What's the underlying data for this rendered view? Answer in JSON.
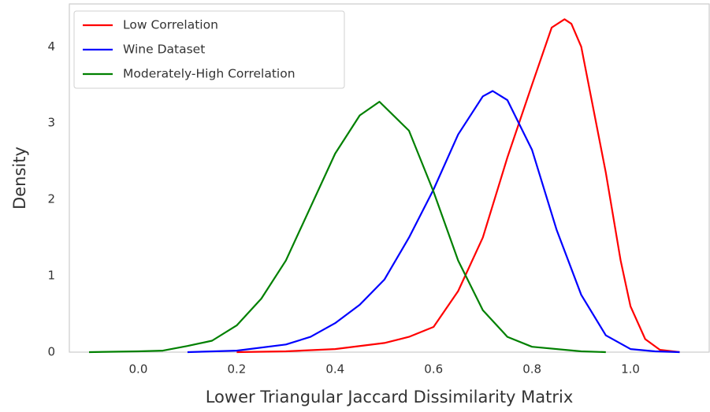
{
  "chart_data": {
    "type": "line",
    "xlabel": "Lower Triangular Jaccard Dissimilarity Matrix",
    "ylabel": "Density",
    "xlim": [
      -0.14,
      1.16
    ],
    "ylim": [
      0,
      4.56
    ],
    "xticks": [
      {
        "value": 0,
        "label": "0.0"
      },
      0.2,
      0.4,
      0.6,
      0.8,
      {
        "value": 1,
        "label": "1.0"
      }
    ],
    "yticks": [
      0,
      1,
      2,
      3,
      4
    ],
    "grid": false,
    "legend": "upper left",
    "series": [
      {
        "name": "Low Correlation",
        "color": "#ff0000",
        "x": [
          0.2,
          0.3,
          0.4,
          0.5,
          0.55,
          0.6,
          0.65,
          0.7,
          0.75,
          0.8,
          0.84,
          0.866,
          0.88,
          0.9,
          0.95,
          0.98,
          1.0,
          1.03,
          1.06,
          1.1
        ],
        "values": [
          0.0,
          0.01,
          0.04,
          0.12,
          0.2,
          0.33,
          0.8,
          1.5,
          2.55,
          3.5,
          4.25,
          4.36,
          4.3,
          4.0,
          2.35,
          1.2,
          0.6,
          0.17,
          0.03,
          0.0
        ]
      },
      {
        "name": "Wine Dataset",
        "color": "#0000ff",
        "x": [
          0.1,
          0.2,
          0.3,
          0.35,
          0.4,
          0.45,
          0.5,
          0.55,
          0.6,
          0.65,
          0.7,
          0.72,
          0.75,
          0.8,
          0.85,
          0.9,
          0.95,
          1.0,
          1.05,
          1.1
        ],
        "values": [
          0.0,
          0.02,
          0.1,
          0.2,
          0.38,
          0.62,
          0.95,
          1.5,
          2.13,
          2.85,
          3.35,
          3.42,
          3.3,
          2.65,
          1.6,
          0.75,
          0.22,
          0.04,
          0.01,
          0.0
        ]
      },
      {
        "name": "Moderately-High Correlation",
        "color": "#008000",
        "x": [
          -0.1,
          0.0,
          0.05,
          0.1,
          0.15,
          0.2,
          0.25,
          0.3,
          0.35,
          0.4,
          0.45,
          0.49,
          0.55,
          0.6,
          0.65,
          0.7,
          0.75,
          0.8,
          0.9,
          0.95
        ],
        "values": [
          0.0,
          0.01,
          0.02,
          0.08,
          0.15,
          0.35,
          0.7,
          1.2,
          1.9,
          2.6,
          3.1,
          3.28,
          2.9,
          2.1,
          1.2,
          0.55,
          0.2,
          0.07,
          0.01,
          0.0
        ]
      }
    ]
  }
}
